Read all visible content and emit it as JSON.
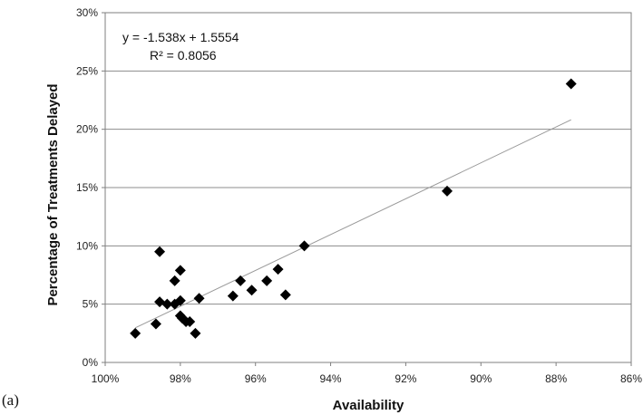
{
  "chart_data": {
    "type": "scatter",
    "xlabel": "Availability",
    "ylabel": "Percentage of Treatments Delayed",
    "xlim": [
      100,
      86
    ],
    "ylim": [
      0,
      30
    ],
    "x_reversed": true,
    "xticks": [
      100,
      98,
      96,
      94,
      92,
      90,
      88,
      86
    ],
    "xtick_labels": [
      "100%",
      "98%",
      "96%",
      "94%",
      "92%",
      "90%",
      "88%",
      "86%"
    ],
    "yticks": [
      0,
      5,
      10,
      15,
      20,
      25,
      30
    ],
    "ytick_labels": [
      "0%",
      "5%",
      "10%",
      "15%",
      "20%",
      "25%",
      "30%"
    ],
    "grid": "horizontal",
    "legend": "none",
    "marker": "diamond",
    "marker_color": "#000000",
    "trendline_color": "#999999",
    "points": [
      {
        "x": 99.2,
        "y": 2.5
      },
      {
        "x": 98.65,
        "y": 3.3
      },
      {
        "x": 98.55,
        "y": 9.5
      },
      {
        "x": 98.55,
        "y": 5.2
      },
      {
        "x": 98.35,
        "y": 5.0
      },
      {
        "x": 98.15,
        "y": 5.0
      },
      {
        "x": 98.15,
        "y": 7.0
      },
      {
        "x": 98.0,
        "y": 7.9
      },
      {
        "x": 98.0,
        "y": 5.3
      },
      {
        "x": 98.0,
        "y": 4.0
      },
      {
        "x": 97.95,
        "y": 3.8
      },
      {
        "x": 97.85,
        "y": 3.5
      },
      {
        "x": 97.75,
        "y": 3.5
      },
      {
        "x": 97.6,
        "y": 2.5
      },
      {
        "x": 97.5,
        "y": 5.5
      },
      {
        "x": 96.6,
        "y": 5.7
      },
      {
        "x": 96.4,
        "y": 7.0
      },
      {
        "x": 96.1,
        "y": 6.2
      },
      {
        "x": 95.7,
        "y": 7.0
      },
      {
        "x": 95.4,
        "y": 8.0
      },
      {
        "x": 95.2,
        "y": 5.8
      },
      {
        "x": 94.7,
        "y": 10.0
      },
      {
        "x": 90.9,
        "y": 14.7
      },
      {
        "x": 87.6,
        "y": 23.9
      }
    ],
    "trendline": {
      "type": "linear",
      "slope": -1.538,
      "intercept": 1.5554,
      "x_range": [
        99.2,
        87.6
      ]
    },
    "annotations": {
      "equation": "y = -1.538x + 1.5554",
      "r_squared": "R² = 0.8056"
    },
    "panel_label": "(a)"
  }
}
